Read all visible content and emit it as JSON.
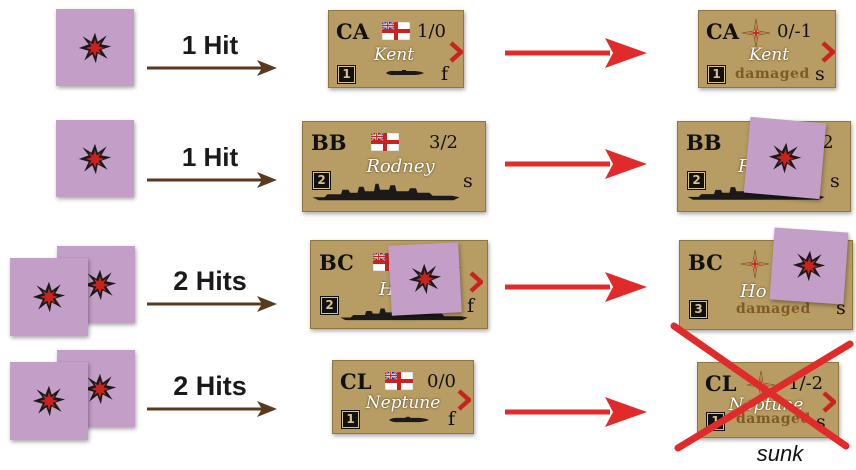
{
  "rows": [
    {
      "hits_label": "1 Hit",
      "before": {
        "type": "CA",
        "factors": "1/0",
        "name": "Kent",
        "speed": "f",
        "number": "1"
      },
      "after": {
        "type": "CA",
        "factors": "0/-1",
        "name": "Kent",
        "status": "damaged",
        "speed": "s",
        "number": "1"
      }
    },
    {
      "hits_label": "1 Hit",
      "before": {
        "type": "BB",
        "factors": "3/2",
        "name": "Rodney",
        "speed": "s",
        "number": "2"
      },
      "after": {
        "type": "BB",
        "factors": "/2",
        "name": "Ro",
        "speed": "s",
        "number": "2"
      }
    },
    {
      "hits_label": "2 Hits",
      "before": {
        "type": "BC",
        "factors": "1",
        "name": "H",
        "speed": "f",
        "number": "2"
      },
      "after": {
        "type": "BC",
        "name": "Ho",
        "status": "damaged",
        "speed": "s",
        "number": "3"
      }
    },
    {
      "hits_label": "2 Hits",
      "before": {
        "type": "CL",
        "factors": "0/0",
        "name": "Neptune",
        "speed": "f",
        "number": "1"
      },
      "after": {
        "type": "CL",
        "factors": "-1/-2",
        "name": "Neptune",
        "status": "damaged",
        "speed": "s",
        "number": "1"
      },
      "result_label": "sunk"
    }
  ],
  "colors": {
    "hit_token": "#c39ec6",
    "counter": "#b79c63",
    "transition_arrow": "#e12a2a",
    "hit_arrow": "#5a3a1c"
  }
}
